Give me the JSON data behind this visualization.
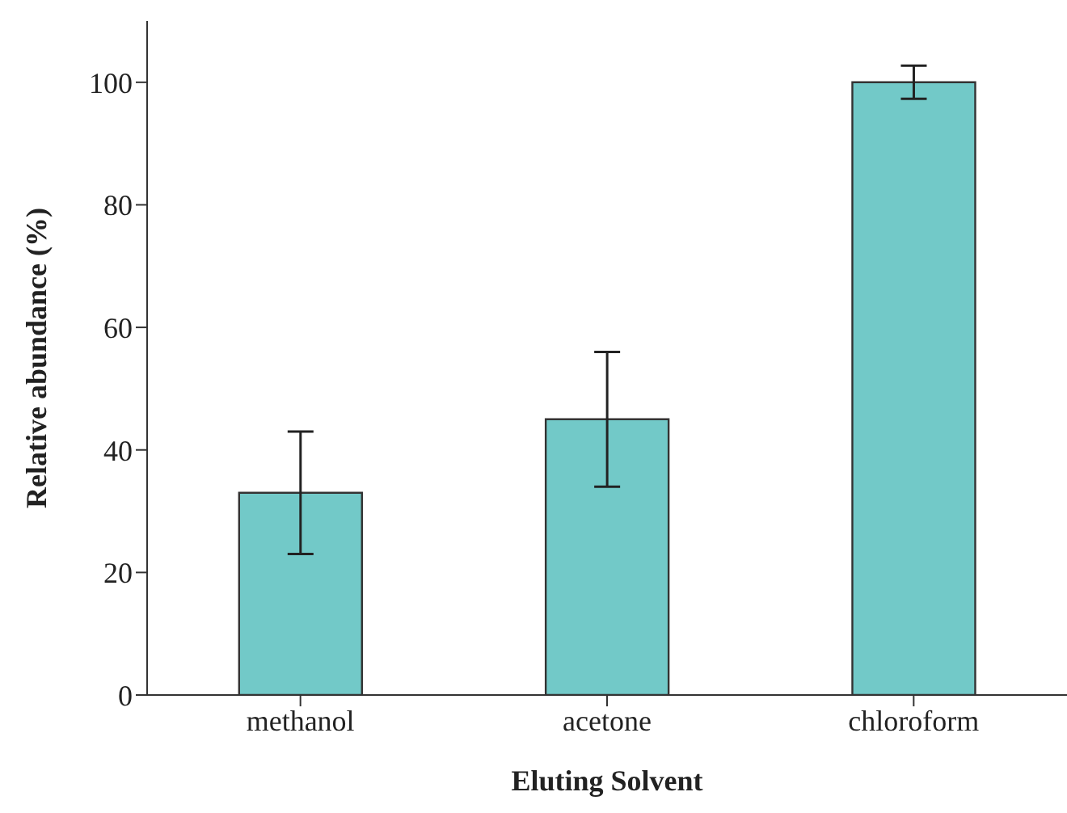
{
  "chart_data": {
    "type": "bar",
    "xlabel": "Eluting Solvent",
    "ylabel": "Relative abundance (%)",
    "categories": [
      "methanol",
      "acetone",
      "chloroform"
    ],
    "values": [
      33,
      45,
      100
    ],
    "errors": [
      10,
      11,
      2.7
    ],
    "color": "#72c9c8",
    "ylim": [
      0,
      110
    ],
    "yticks": [
      0,
      20,
      40,
      60,
      80,
      100
    ],
    "grid": false,
    "legend": false
  }
}
